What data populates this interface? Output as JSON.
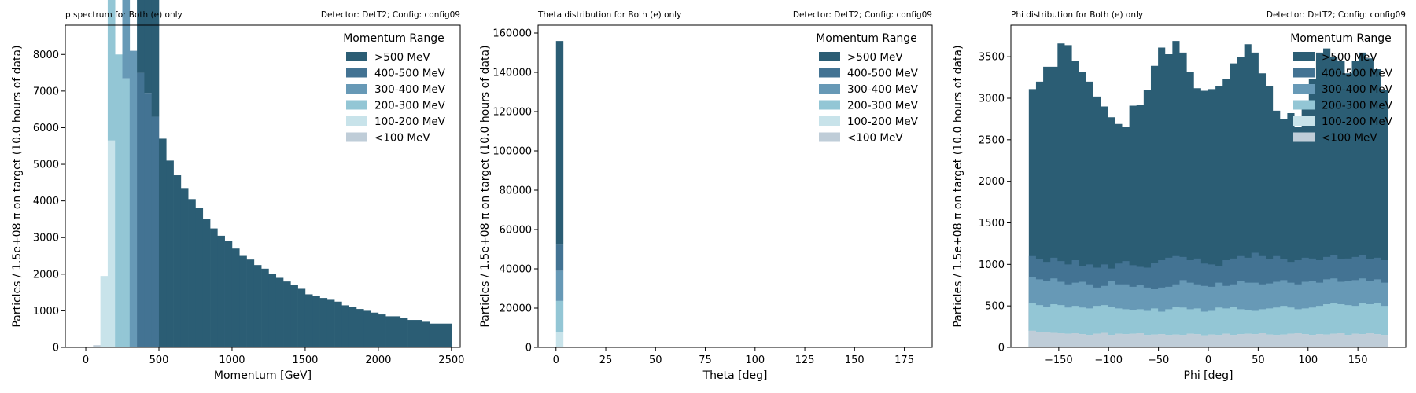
{
  "chart_data": [
    {
      "type": "bar",
      "title_left": "p spectrum for Both (e) only",
      "title_right": "Detector: DetT2; Config: config09",
      "xlabel": "Momentum [GeV]",
      "ylabel": "Particles / 1.5e+08 π on target (10.0 hours of data)",
      "xlim": [
        -140,
        2560
      ],
      "ylim": [
        0,
        8800
      ],
      "xticks": [
        0,
        500,
        1000,
        1500,
        2000,
        2500
      ],
      "yticks": [
        0,
        1000,
        2000,
        3000,
        4000,
        5000,
        6000,
        7000,
        8000
      ],
      "legend": {
        "title": "Momentum Range",
        "position": "upper right",
        "framed": false
      },
      "stacked": true,
      "bin_width": 50,
      "bin_starts": [
        0,
        50,
        100,
        150,
        200,
        250,
        300,
        350,
        400,
        450,
        500,
        550,
        600,
        650,
        700,
        750,
        800,
        850,
        900,
        950,
        1000,
        1050,
        1100,
        1150,
        1200,
        1250,
        1300,
        1350,
        1400,
        1450,
        1500,
        1550,
        1600,
        1650,
        1700,
        1750,
        1800,
        1850,
        1900,
        1950,
        2000,
        2050,
        2100,
        2150,
        2200,
        2250,
        2300,
        2350,
        2400,
        2450
      ],
      "series": [
        {
          "name": "<100 MeV",
          "color": "#bfcdd8",
          "values": [
            20,
            60
          ]
        },
        {
          "name": "100-200 MeV",
          "color": "#c8e3ea",
          "values": [
            0,
            0,
            1950,
            5650
          ]
        },
        {
          "name": "200-300 MeV",
          "color": "#93c6d5",
          "values": [
            0,
            0,
            0,
            6200,
            8000,
            7350
          ]
        },
        {
          "name": "300-400 MeV",
          "color": "#6799b6",
          "values": [
            0,
            0,
            0,
            0,
            0,
            8400,
            8100
          ]
        },
        {
          "name": "400-500 MeV",
          "color": "#437393",
          "values": [
            0,
            0,
            0,
            0,
            0,
            0,
            0,
            7500,
            6950,
            6300
          ]
        },
        {
          "name": ">500 MeV",
          "color": "#2b5d74",
          "values": [
            0,
            0,
            0,
            0,
            0,
            0,
            0,
            6350,
            6000,
            5100,
            5700,
            5100,
            4700,
            4350,
            4050,
            3800,
            3500,
            3250,
            3050,
            2900,
            2700,
            2500,
            2400,
            2250,
            2150,
            2000,
            1900,
            1800,
            1700,
            1600,
            1450,
            1400,
            1350,
            1300,
            1250,
            1150,
            1100,
            1050,
            1000,
            950,
            900,
            850,
            850,
            800,
            750,
            750,
            700,
            650,
            650,
            650
          ]
        }
      ]
    },
    {
      "type": "bar",
      "title_left": "Theta distribution for Both (e) only",
      "title_right": "Detector: DetT2; Config: config09",
      "xlabel": "Theta [deg]",
      "ylabel": "Particles / 1.5e+08 π on target (10.0 hours of data)",
      "xlim": [
        -9,
        189
      ],
      "ylim": [
        0,
        164000
      ],
      "xticks": [
        0,
        25,
        50,
        75,
        100,
        125,
        150,
        175
      ],
      "yticks": [
        0,
        20000,
        40000,
        60000,
        80000,
        100000,
        120000,
        140000,
        160000
      ],
      "legend": {
        "title": "Momentum Range",
        "position": "upper right",
        "framed": false
      },
      "stacked": true,
      "bin_width": 3.6,
      "bin_starts": [
        0
      ],
      "series": [
        {
          "name": "<100 MeV",
          "color": "#bfcdd8",
          "values": [
            150
          ]
        },
        {
          "name": "100-200 MeV",
          "color": "#c8e3ea",
          "values": [
            7600
          ]
        },
        {
          "name": "200-300 MeV",
          "color": "#93c6d5",
          "values": [
            15900
          ]
        },
        {
          "name": "300-400 MeV",
          "color": "#6799b6",
          "values": [
            15400
          ]
        },
        {
          "name": "400-500 MeV",
          "color": "#437393",
          "values": [
            13200
          ]
        },
        {
          "name": ">500 MeV",
          "color": "#2b5d74",
          "values": [
            103700
          ]
        }
      ]
    },
    {
      "type": "area",
      "title_left": "Phi distribution for Both (e) only",
      "title_right": "Detector: DetT2; Config: config09",
      "xlabel": "Phi [deg]",
      "ylabel": "Particles / 1.5e+08 π on target (10.0 hours of data)",
      "xlim": [
        -198,
        198
      ],
      "ylim": [
        0,
        3880
      ],
      "xticks": [
        -150,
        -100,
        -50,
        0,
        50,
        100,
        150
      ],
      "yticks": [
        0,
        500,
        1000,
        1500,
        2000,
        2500,
        3000,
        3500
      ],
      "legend": {
        "title": "Momentum Range",
        "position": "upper right",
        "framed": true
      },
      "stacked": true,
      "bin_width": 7.2,
      "bin_start": -180,
      "cumulative_tops": {
        "<100 MeV": [
          200,
          185,
          180,
          175,
          170,
          165,
          170,
          160,
          150,
          165,
          175,
          150,
          165,
          160,
          165,
          170,
          150,
          155,
          160,
          150,
          155,
          150,
          165,
          160,
          145,
          155,
          150,
          165,
          150,
          160,
          165,
          160,
          170,
          155,
          150,
          155,
          165,
          170,
          160,
          150,
          160,
          155,
          165,
          170,
          150,
          165,
          160,
          170,
          160,
          150
        ],
        "100-200 MeV": [
          200,
          185,
          180,
          175,
          170,
          165,
          170,
          160,
          150,
          165,
          175,
          150,
          165,
          160,
          165,
          170,
          150,
          155,
          160,
          150,
          155,
          150,
          165,
          160,
          145,
          155,
          150,
          165,
          150,
          160,
          165,
          160,
          170,
          155,
          150,
          155,
          165,
          170,
          160,
          150,
          160,
          155,
          165,
          170,
          150,
          165,
          160,
          170,
          160,
          150
        ],
        "200-300 MeV": [
          530,
          510,
          490,
          520,
          510,
          480,
          500,
          480,
          470,
          500,
          510,
          490,
          470,
          460,
          450,
          460,
          440,
          470,
          430,
          460,
          490,
          480,
          460,
          470,
          430,
          440,
          480,
          470,
          490,
          460,
          450,
          440,
          460,
          470,
          480,
          500,
          480,
          460,
          470,
          480,
          500,
          520,
          540,
          520,
          510,
          500,
          540,
          520,
          530,
          500
        ],
        "300-400 MeV": [
          850,
          820,
          800,
          830,
          790,
          760,
          780,
          790,
          760,
          720,
          740,
          800,
          760,
          760,
          730,
          750,
          720,
          700,
          720,
          730,
          760,
          810,
          780,
          760,
          740,
          730,
          780,
          740,
          760,
          800,
          780,
          780,
          760,
          770,
          790,
          810,
          780,
          760,
          790,
          800,
          780,
          820,
          830,
          790,
          800,
          810,
          830,
          800,
          820,
          780
        ],
        "400-500 MeV": [
          1100,
          1060,
          1030,
          1080,
          1040,
          1000,
          1050,
          980,
          1000,
          960,
          1000,
          950,
          1010,
          1040,
          990,
          970,
          960,
          1020,
          1050,
          1080,
          1100,
          1090,
          1050,
          1070,
          1010,
          1000,
          980,
          1050,
          1070,
          1100,
          1080,
          1140,
          1100,
          1060,
          1100,
          1060,
          1030,
          1050,
          1080,
          1070,
          1050,
          1090,
          1110,
          1060,
          1070,
          1090,
          1110,
          1060,
          1080,
          1050
        ],
        ">500 MeV": [
          3110,
          3200,
          3380,
          3380,
          3660,
          3640,
          3450,
          3320,
          3200,
          3020,
          2900,
          2770,
          2690,
          2650,
          2910,
          2920,
          3100,
          3390,
          3610,
          3530,
          3690,
          3550,
          3320,
          3120,
          3090,
          3110,
          3150,
          3230,
          3420,
          3500,
          3650,
          3550,
          3300,
          3150,
          2850,
          2750,
          2820,
          2650,
          2900,
          3230,
          3550,
          3600,
          3500,
          3450,
          3300,
          3450,
          3550,
          3480,
          3350,
          3100
        ]
      },
      "series": [
        {
          "name": ">500 MeV",
          "color": "#2b5d74"
        },
        {
          "name": "400-500 MeV",
          "color": "#437393"
        },
        {
          "name": "300-400 MeV",
          "color": "#6799b6"
        },
        {
          "name": "200-300 MeV",
          "color": "#93c6d5"
        },
        {
          "name": "100-200 MeV",
          "color": "#c8e3ea"
        },
        {
          "name": "<100 MeV",
          "color": "#bfcdd8"
        }
      ]
    }
  ]
}
